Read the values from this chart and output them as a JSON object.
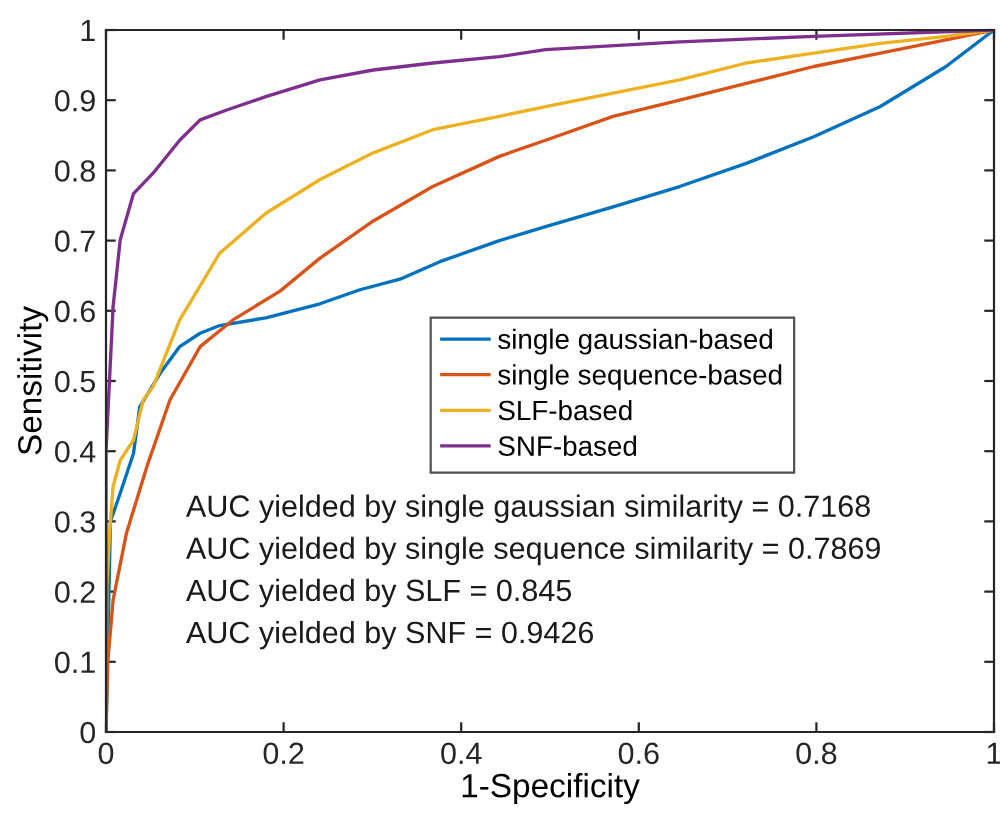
{
  "chart_data": {
    "type": "line",
    "xlabel": "1-Specificity",
    "ylabel": "Sensitivity",
    "xlim": [
      0,
      1
    ],
    "ylim": [
      0,
      1
    ],
    "xticks": [
      0,
      0.2,
      0.4,
      0.6,
      0.8,
      1
    ],
    "yticks": [
      0,
      0.1,
      0.2,
      0.3,
      0.4,
      0.5,
      0.6,
      0.7,
      0.8,
      0.9,
      1
    ],
    "grid": false,
    "legend": "center right",
    "marker": "none",
    "line_style": "solid",
    "series": [
      {
        "name": "single gaussian-based",
        "color": "#0072bd",
        "x": [
          0,
          0.005,
          0.016,
          0.031,
          0.038,
          0.061,
          0.083,
          0.106,
          0.128,
          0.18,
          0.241,
          0.286,
          0.331,
          0.376,
          0.443,
          0.495,
          0.571,
          0.646,
          0.721,
          0.797,
          0.872,
          0.946,
          1
        ],
        "values": [
          0,
          0.3,
          0.34,
          0.397,
          0.463,
          0.511,
          0.549,
          0.568,
          0.579,
          0.59,
          0.61,
          0.63,
          0.645,
          0.67,
          0.7,
          0.72,
          0.748,
          0.777,
          0.81,
          0.848,
          0.891,
          0.948,
          1
        ]
      },
      {
        "name": "single sequence-based",
        "color": "#d95319",
        "x": [
          0,
          0.002,
          0.008,
          0.023,
          0.046,
          0.072,
          0.106,
          0.143,
          0.196,
          0.241,
          0.301,
          0.368,
          0.443,
          0.495,
          0.571,
          0.646,
          0.721,
          0.797,
          0.872,
          0.946,
          1
        ],
        "values": [
          0,
          0.1,
          0.188,
          0.283,
          0.378,
          0.473,
          0.549,
          0.587,
          0.628,
          0.675,
          0.728,
          0.777,
          0.82,
          0.843,
          0.877,
          0.9,
          0.924,
          0.948,
          0.967,
          0.986,
          1
        ]
      },
      {
        "name": "SLF-based",
        "color": "#edb120",
        "x": [
          0,
          0.001,
          0.004,
          0.008,
          0.016,
          0.031,
          0.042,
          0.053,
          0.083,
          0.128,
          0.18,
          0.241,
          0.301,
          0.368,
          0.443,
          0.495,
          0.571,
          0.646,
          0.721,
          0.797,
          0.872,
          0.946,
          1
        ],
        "values": [
          0,
          0.207,
          0.283,
          0.35,
          0.387,
          0.416,
          0.473,
          0.492,
          0.587,
          0.682,
          0.739,
          0.787,
          0.825,
          0.858,
          0.877,
          0.891,
          0.91,
          0.929,
          0.953,
          0.967,
          0.981,
          0.991,
          1
        ]
      },
      {
        "name": "SNF-based",
        "color": "#7e2f8e",
        "x": [
          0,
          0,
          0.008,
          0.016,
          0.031,
          0.053,
          0.083,
          0.106,
          0.136,
          0.18,
          0.241,
          0.301,
          0.368,
          0.443,
          0.495,
          0.646,
          0.797,
          1
        ],
        "values": [
          0,
          0.4,
          0.606,
          0.701,
          0.767,
          0.796,
          0.843,
          0.872,
          0.886,
          0.905,
          0.929,
          0.943,
          0.953,
          0.962,
          0.972,
          0.983,
          0.991,
          1
        ]
      }
    ],
    "annotations": [
      "AUC yielded by single gaussian similarity = 0.7168",
      "AUC yielded by single sequence similarity = 0.7869",
      "AUC yielded by SLF = 0.845",
      "AUC yielded by SNF = 0.9426"
    ]
  }
}
